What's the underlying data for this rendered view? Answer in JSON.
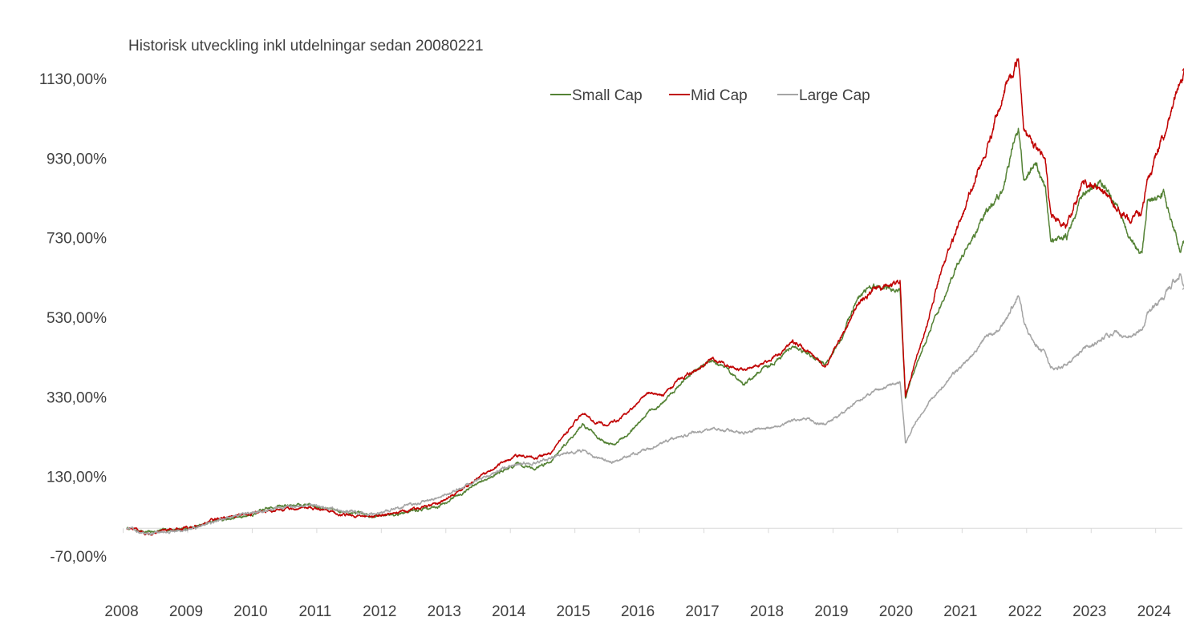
{
  "chart_data": {
    "type": "line",
    "title": "Historisk utveckling inkl utdelningar sedan 20080221",
    "xlabel": "",
    "ylabel": "",
    "x_ticks": [
      "2008",
      "2009",
      "2010",
      "2011",
      "2012",
      "2013",
      "2014",
      "2015",
      "2016",
      "2017",
      "2018",
      "2019",
      "2020",
      "2021",
      "2022",
      "2023",
      "2024"
    ],
    "y_ticks": [
      "-70,00%",
      "130,00%",
      "330,00%",
      "530,00%",
      "730,00%",
      "930,00%",
      "1130,00%"
    ],
    "x_range": [
      "2008-02-21",
      "2024-06-30"
    ],
    "ylim": [
      -70,
      1130
    ],
    "grid": false,
    "legend_position": "top-right",
    "series": [
      {
        "name": "Small Cap",
        "color": "#548235",
        "points": [
          [
            "2008-02-21",
            0
          ],
          [
            "2008-06",
            -10
          ],
          [
            "2008-11",
            -3
          ],
          [
            "2009-03",
            2
          ],
          [
            "2009-06",
            18
          ],
          [
            "2009-12",
            30
          ],
          [
            "2010-06",
            55
          ],
          [
            "2010-12",
            60
          ],
          [
            "2011-06",
            43
          ],
          [
            "2011-12",
            30
          ],
          [
            "2012-06",
            40
          ],
          [
            "2012-12",
            55
          ],
          [
            "2013-06",
            100
          ],
          [
            "2013-12",
            145
          ],
          [
            "2014-03",
            160
          ],
          [
            "2014-06",
            150
          ],
          [
            "2014-09",
            168
          ],
          [
            "2014-12",
            215
          ],
          [
            "2015-03",
            260
          ],
          [
            "2015-05",
            240
          ],
          [
            "2015-07",
            215
          ],
          [
            "2015-09",
            210
          ],
          [
            "2015-12",
            245
          ],
          [
            "2016-03",
            290
          ],
          [
            "2016-06",
            315
          ],
          [
            "2016-09",
            360
          ],
          [
            "2016-12",
            400
          ],
          [
            "2017-03",
            420
          ],
          [
            "2017-06",
            400
          ],
          [
            "2017-09",
            360
          ],
          [
            "2017-12",
            395
          ],
          [
            "2018-03",
            420
          ],
          [
            "2018-06",
            460
          ],
          [
            "2018-09",
            440
          ],
          [
            "2018-12",
            410
          ],
          [
            "2019-03",
            470
          ],
          [
            "2019-06",
            580
          ],
          [
            "2019-09",
            610
          ],
          [
            "2019-12",
            600
          ],
          [
            "2020-02",
            600
          ],
          [
            "2020-03",
            330
          ],
          [
            "2020-05",
            410
          ],
          [
            "2020-07",
            480
          ],
          [
            "2020-09",
            540
          ],
          [
            "2020-12",
            640
          ],
          [
            "2021-03",
            720
          ],
          [
            "2021-06",
            790
          ],
          [
            "2021-09",
            840
          ],
          [
            "2021-11",
            960
          ],
          [
            "2021-12",
            1000
          ],
          [
            "2022-01",
            870
          ],
          [
            "2022-03",
            920
          ],
          [
            "2022-05",
            860
          ],
          [
            "2022-06",
            720
          ],
          [
            "2022-09",
            730
          ],
          [
            "2022-12",
            840
          ],
          [
            "2023-03",
            870
          ],
          [
            "2023-06",
            820
          ],
          [
            "2023-09",
            720
          ],
          [
            "2023-11",
            690
          ],
          [
            "2023-12",
            820
          ],
          [
            "2024-03",
            840
          ],
          [
            "2024-06",
            700
          ],
          [
            "2024-07",
            720
          ]
        ]
      },
      {
        "name": "Mid Cap",
        "color": "#c00000",
        "points": [
          [
            "2008-02-21",
            0
          ],
          [
            "2008-06",
            -12
          ],
          [
            "2008-11",
            -5
          ],
          [
            "2009-03",
            5
          ],
          [
            "2009-06",
            20
          ],
          [
            "2009-12",
            35
          ],
          [
            "2010-06",
            45
          ],
          [
            "2010-12",
            55
          ],
          [
            "2011-06",
            35
          ],
          [
            "2011-12",
            30
          ],
          [
            "2012-06",
            45
          ],
          [
            "2012-12",
            60
          ],
          [
            "2013-06",
            110
          ],
          [
            "2013-12",
            165
          ],
          [
            "2014-03",
            185
          ],
          [
            "2014-06",
            175
          ],
          [
            "2014-09",
            190
          ],
          [
            "2014-12",
            240
          ],
          [
            "2015-03",
            290
          ],
          [
            "2015-05",
            270
          ],
          [
            "2015-07",
            260
          ],
          [
            "2015-09",
            270
          ],
          [
            "2015-12",
            295
          ],
          [
            "2016-03",
            340
          ],
          [
            "2016-06",
            335
          ],
          [
            "2016-09",
            375
          ],
          [
            "2016-12",
            395
          ],
          [
            "2017-03",
            425
          ],
          [
            "2017-06",
            410
          ],
          [
            "2017-09",
            395
          ],
          [
            "2017-12",
            415
          ],
          [
            "2018-03",
            430
          ],
          [
            "2018-06",
            470
          ],
          [
            "2018-09",
            445
          ],
          [
            "2018-12",
            405
          ],
          [
            "2019-03",
            480
          ],
          [
            "2019-06",
            560
          ],
          [
            "2019-09",
            600
          ],
          [
            "2019-12",
            610
          ],
          [
            "2020-02",
            615
          ],
          [
            "2020-03",
            330
          ],
          [
            "2020-05",
            430
          ],
          [
            "2020-07",
            510
          ],
          [
            "2020-09",
            620
          ],
          [
            "2020-12",
            730
          ],
          [
            "2021-03",
            840
          ],
          [
            "2021-06",
            950
          ],
          [
            "2021-09",
            1080
          ],
          [
            "2021-11",
            1150
          ],
          [
            "2021-12",
            1180
          ],
          [
            "2022-01",
            1000
          ],
          [
            "2022-03",
            960
          ],
          [
            "2022-05",
            930
          ],
          [
            "2022-06",
            790
          ],
          [
            "2022-09",
            760
          ],
          [
            "2022-12",
            870
          ],
          [
            "2023-03",
            860
          ],
          [
            "2023-06",
            810
          ],
          [
            "2023-09",
            770
          ],
          [
            "2023-11",
            800
          ],
          [
            "2023-12",
            870
          ],
          [
            "2024-03",
            980
          ],
          [
            "2024-06",
            1130
          ],
          [
            "2024-07",
            1150
          ]
        ]
      },
      {
        "name": "Large Cap",
        "color": "#a5a5a5",
        "points": [
          [
            "2008-02-21",
            0
          ],
          [
            "2008-06",
            -15
          ],
          [
            "2008-11",
            -8
          ],
          [
            "2009-03",
            2
          ],
          [
            "2009-06",
            15
          ],
          [
            "2009-12",
            35
          ],
          [
            "2010-06",
            50
          ],
          [
            "2010-12",
            60
          ],
          [
            "2011-06",
            45
          ],
          [
            "2011-12",
            35
          ],
          [
            "2012-06",
            55
          ],
          [
            "2012-12",
            75
          ],
          [
            "2013-06",
            110
          ],
          [
            "2013-12",
            150
          ],
          [
            "2014-03",
            160
          ],
          [
            "2014-06",
            165
          ],
          [
            "2014-09",
            175
          ],
          [
            "2014-12",
            190
          ],
          [
            "2015-03",
            195
          ],
          [
            "2015-05",
            180
          ],
          [
            "2015-07",
            170
          ],
          [
            "2015-09",
            165
          ],
          [
            "2015-12",
            185
          ],
          [
            "2016-03",
            200
          ],
          [
            "2016-06",
            215
          ],
          [
            "2016-09",
            230
          ],
          [
            "2016-12",
            245
          ],
          [
            "2017-03",
            250
          ],
          [
            "2017-06",
            245
          ],
          [
            "2017-09",
            240
          ],
          [
            "2017-12",
            250
          ],
          [
            "2018-03",
            255
          ],
          [
            "2018-06",
            270
          ],
          [
            "2018-09",
            275
          ],
          [
            "2018-12",
            260
          ],
          [
            "2019-03",
            285
          ],
          [
            "2019-06",
            320
          ],
          [
            "2019-09",
            345
          ],
          [
            "2019-12",
            360
          ],
          [
            "2020-02",
            365
          ],
          [
            "2020-03",
            215
          ],
          [
            "2020-05",
            270
          ],
          [
            "2020-07",
            310
          ],
          [
            "2020-09",
            340
          ],
          [
            "2020-12",
            390
          ],
          [
            "2021-03",
            430
          ],
          [
            "2021-06",
            480
          ],
          [
            "2021-09",
            510
          ],
          [
            "2021-11",
            560
          ],
          [
            "2021-12",
            590
          ],
          [
            "2022-01",
            520
          ],
          [
            "2022-03",
            460
          ],
          [
            "2022-05",
            440
          ],
          [
            "2022-06",
            400
          ],
          [
            "2022-09",
            410
          ],
          [
            "2022-12",
            450
          ],
          [
            "2023-03",
            470
          ],
          [
            "2023-06",
            490
          ],
          [
            "2023-09",
            480
          ],
          [
            "2023-11",
            500
          ],
          [
            "2023-12",
            540
          ],
          [
            "2024-03",
            580
          ],
          [
            "2024-06",
            640
          ],
          [
            "2024-07",
            600
          ]
        ]
      }
    ]
  }
}
